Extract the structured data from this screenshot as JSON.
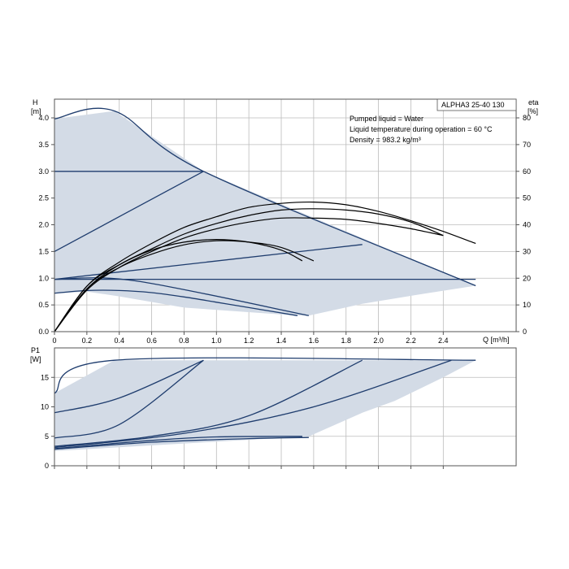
{
  "chart_data": [
    {
      "type": "line",
      "name": "head",
      "title": "ALPHA3 25-40 130",
      "xlabel": "Q [m³/h]",
      "ylabel": [
        "H",
        "[m]"
      ],
      "y2label": [
        "eta",
        "[%]"
      ],
      "xlim": [
        0,
        2.85
      ],
      "ylim": [
        0,
        4.35
      ],
      "y2lim": [
        0,
        87
      ],
      "x_ticks": [
        "0",
        "0.2",
        "0.4",
        "0.6",
        "0.8",
        "1.0",
        "1.2",
        "1.4",
        "1.6",
        "1.8",
        "2.0",
        "2.2",
        "2.4"
      ],
      "y_ticks": [
        "0.0",
        "0.5",
        "1.0",
        "1.5",
        "2.0",
        "2.5",
        "3.0",
        "3.5",
        "4.0"
      ],
      "y2_ticks": [
        "0",
        "10",
        "20",
        "30",
        "40",
        "50",
        "60",
        "70",
        "80"
      ],
      "grid": true,
      "annotations": [
        "Pumped liquid = Water",
        "Liquid temperature during operation = 60 °C",
        "Density = 983.2 kg/m³"
      ],
      "operating_area": [
        [
          0,
          3.98
        ],
        [
          0.37,
          4.13
        ],
        [
          0.92,
          3.0
        ],
        [
          2.6,
          0.86
        ],
        [
          2.3,
          0.72
        ],
        [
          1.9,
          0.52
        ],
        [
          1.57,
          0.3
        ],
        [
          1.5,
          0.3
        ],
        [
          0.8,
          0.45
        ],
        [
          0.4,
          0.66
        ],
        [
          0.2,
          0.75
        ],
        [
          0,
          0.71
        ]
      ],
      "pump_curves": [
        {
          "points": [
            [
              0,
              3.98
            ],
            [
              0.37,
              4.13
            ],
            [
              0.92,
              3.0
            ],
            [
              2.6,
              0.86
            ]
          ]
        },
        {
          "points": [
            [
              0,
              3.0
            ],
            [
              0.92,
              3.0
            ]
          ]
        },
        {
          "points": [
            [
              0,
              1.5
            ],
            [
              0.92,
              3.0
            ]
          ]
        },
        {
          "points": [
            [
              0,
              0.98
            ],
            [
              2.6,
              0.98
            ]
          ]
        },
        {
          "points": [
            [
              0,
              0.98
            ],
            [
              1.9,
              1.63
            ]
          ]
        },
        {
          "points": [
            [
              0,
              0.72
            ],
            [
              0.2,
              0.77
            ],
            [
              0.4,
              0.77
            ],
            [
              0.6,
              0.73
            ],
            [
              0.8,
              0.65
            ],
            [
              1.0,
              0.55
            ],
            [
              1.2,
              0.45
            ],
            [
              1.5,
              0.3
            ]
          ]
        },
        {
          "points": [
            [
              0,
              0.98
            ],
            [
              0.5,
              0.95
            ],
            [
              1.57,
              0.3
            ]
          ]
        }
      ],
      "efficiency_curves_pct": [
        {
          "points": [
            [
              0,
              0
            ],
            [
              0.2,
              17
            ],
            [
              0.4,
              26
            ],
            [
              0.6,
              33
            ],
            [
              0.8,
              39
            ],
            [
              1.0,
              43
            ],
            [
              1.2,
              46.5
            ],
            [
              1.4,
              48
            ],
            [
              1.6,
              48.5
            ],
            [
              1.8,
              47.5
            ],
            [
              2.0,
              45
            ],
            [
              2.2,
              41.5
            ],
            [
              2.4,
              37.5
            ],
            [
              2.6,
              33
            ]
          ]
        },
        {
          "points": [
            [
              0,
              0
            ],
            [
              0.2,
              16
            ],
            [
              0.4,
              25
            ],
            [
              0.6,
              31
            ],
            [
              0.8,
              36.5
            ],
            [
              1.0,
              40.5
            ],
            [
              1.2,
              43.5
            ],
            [
              1.4,
              45.5
            ],
            [
              1.6,
              46
            ],
            [
              1.8,
              45.5
            ],
            [
              2.0,
              44
            ],
            [
              2.2,
              41
            ],
            [
              2.4,
              36
            ]
          ]
        },
        {
          "points": [
            [
              0,
              0
            ],
            [
              0.2,
              15.5
            ],
            [
              0.4,
              24
            ],
            [
              0.6,
              30
            ],
            [
              0.8,
              35
            ],
            [
              1.0,
              38.5
            ],
            [
              1.2,
              41
            ],
            [
              1.4,
              42.5
            ],
            [
              1.6,
              42.5
            ],
            [
              1.8,
              42
            ],
            [
              2.0,
              40.5
            ],
            [
              2.2,
              38.5
            ],
            [
              2.4,
              36
            ]
          ]
        },
        {
          "points": [
            [
              0,
              0
            ],
            [
              0.2,
              17
            ],
            [
              0.4,
              25
            ],
            [
              0.6,
              30.5
            ],
            [
              0.8,
              33.5
            ],
            [
              1.0,
              34.5
            ],
            [
              1.2,
              33.5
            ],
            [
              1.4,
              30.5
            ],
            [
              1.53,
              26.5
            ]
          ]
        },
        {
          "points": [
            [
              0,
              0
            ],
            [
              0.2,
              16
            ],
            [
              0.4,
              24
            ],
            [
              0.6,
              29
            ],
            [
              0.8,
              32.5
            ],
            [
              1.0,
              34
            ],
            [
              1.2,
              33.5
            ],
            [
              1.4,
              31.5
            ],
            [
              1.6,
              26.5
            ]
          ]
        }
      ]
    },
    {
      "type": "line",
      "name": "power",
      "xlabel": "",
      "ylabel": [
        "P1",
        "[W]"
      ],
      "xlim": [
        0,
        2.85
      ],
      "ylim": [
        0,
        20
      ],
      "y_ticks": [
        "0",
        "5",
        "10",
        "15"
      ],
      "grid": true,
      "operating_area": [
        [
          0,
          12.3
        ],
        [
          0.37,
          17.9
        ],
        [
          2.6,
          17.9
        ],
        [
          2.4,
          15
        ],
        [
          2.1,
          11
        ],
        [
          1.9,
          9
        ],
        [
          1.57,
          5
        ],
        [
          0,
          2.5
        ]
      ],
      "power_curves": [
        {
          "points": [
            [
              0,
              12.3
            ],
            [
              0.37,
              17.9
            ],
            [
              2.6,
              17.9
            ]
          ]
        },
        {
          "points": [
            [
              0,
              9
            ],
            [
              0.4,
              11.5
            ],
            [
              0.92,
              17.9
            ]
          ]
        },
        {
          "points": [
            [
              0,
              4.7
            ],
            [
              0.4,
              7
            ],
            [
              0.92,
              17.9
            ]
          ]
        },
        {
          "points": [
            [
              0,
              3.3
            ],
            [
              0.6,
              5
            ],
            [
              1.2,
              8.5
            ],
            [
              1.9,
              17.9
            ]
          ]
        },
        {
          "points": [
            [
              0,
              3.1
            ],
            [
              0.8,
              5.5
            ],
            [
              1.6,
              10
            ],
            [
              2.45,
              17.9
            ]
          ]
        },
        {
          "points": [
            [
              0,
              2.9
            ],
            [
              0.6,
              4.3
            ],
            [
              1.0,
              4.9
            ],
            [
              1.53,
              5
            ]
          ]
        },
        {
          "points": [
            [
              0,
              2.8
            ],
            [
              0.6,
              4
            ],
            [
              1.2,
              4.6
            ],
            [
              1.57,
              4.8
            ]
          ]
        }
      ]
    }
  ],
  "colors": {
    "fill": "#d3dbe6",
    "curve": "#1f3d6e",
    "eff": "#000000",
    "grid": "#bcbcbc",
    "frame": "#555555"
  }
}
